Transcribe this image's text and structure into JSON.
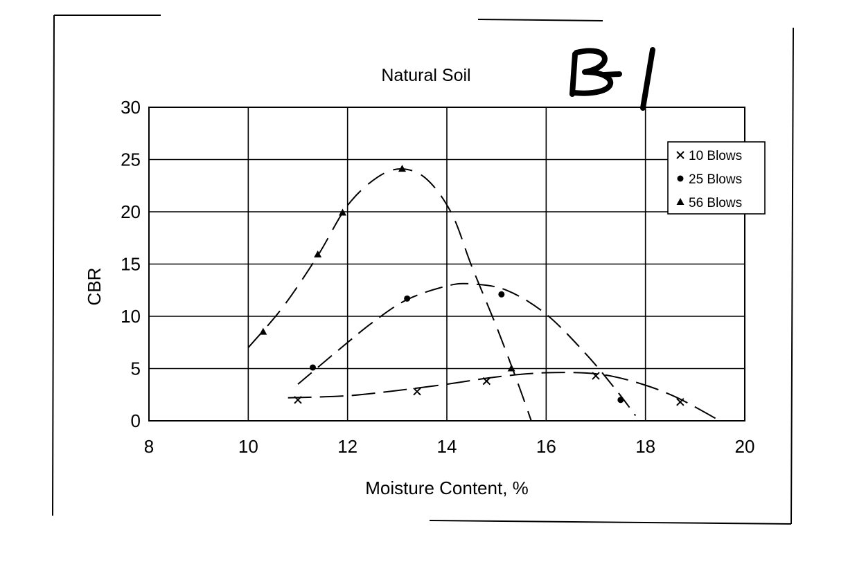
{
  "annotation": "B-1",
  "chart_data": {
    "type": "scatter",
    "title": "Natural Soil",
    "xlabel": "Moisture Content, %",
    "ylabel": "CBR",
    "xlim": [
      8,
      20
    ],
    "ylim": [
      0,
      30
    ],
    "xticks": [
      8,
      10,
      12,
      14,
      16,
      18,
      20
    ],
    "yticks": [
      0,
      5,
      10,
      15,
      20,
      25,
      30
    ],
    "grid": true,
    "legend_position": "top-right",
    "series": [
      {
        "name": "10 Blows",
        "marker": "x",
        "points": [
          [
            11.0,
            2.0
          ],
          [
            13.4,
            2.8
          ],
          [
            14.8,
            3.8
          ],
          [
            17.0,
            4.3
          ],
          [
            18.7,
            1.8
          ]
        ],
        "trend": [
          [
            10.8,
            2.2
          ],
          [
            12.0,
            2.4
          ],
          [
            13.0,
            2.9
          ],
          [
            14.0,
            3.5
          ],
          [
            15.0,
            4.2
          ],
          [
            16.0,
            4.6
          ],
          [
            17.0,
            4.5
          ],
          [
            17.8,
            3.7
          ],
          [
            18.6,
            2.3
          ],
          [
            19.5,
            0.0
          ]
        ]
      },
      {
        "name": "25 Blows",
        "marker": "circle",
        "points": [
          [
            11.3,
            5.1
          ],
          [
            13.2,
            11.7
          ],
          [
            15.1,
            12.1
          ],
          [
            17.5,
            2.0
          ]
        ],
        "trend": [
          [
            11.0,
            3.5
          ],
          [
            11.8,
            6.7
          ],
          [
            12.5,
            9.4
          ],
          [
            13.2,
            11.6
          ],
          [
            14.0,
            12.9
          ],
          [
            14.5,
            13.1
          ],
          [
            15.2,
            12.5
          ],
          [
            16.0,
            10.2
          ],
          [
            16.8,
            6.4
          ],
          [
            17.4,
            3.0
          ],
          [
            17.8,
            0.5
          ]
        ]
      },
      {
        "name": "56 Blows",
        "marker": "triangle",
        "points": [
          [
            10.3,
            8.5
          ],
          [
            11.4,
            15.9
          ],
          [
            11.9,
            19.9
          ],
          [
            13.1,
            24.1
          ],
          [
            15.3,
            5.0
          ]
        ],
        "trend": [
          [
            10.0,
            7.0
          ],
          [
            10.7,
            10.9
          ],
          [
            11.4,
            15.8
          ],
          [
            12.0,
            20.6
          ],
          [
            12.6,
            23.3
          ],
          [
            13.1,
            24.1
          ],
          [
            13.6,
            23.1
          ],
          [
            14.1,
            19.8
          ],
          [
            14.5,
            14.8
          ],
          [
            15.0,
            9.0
          ],
          [
            15.4,
            4.0
          ],
          [
            15.7,
            0.0
          ]
        ]
      }
    ]
  }
}
